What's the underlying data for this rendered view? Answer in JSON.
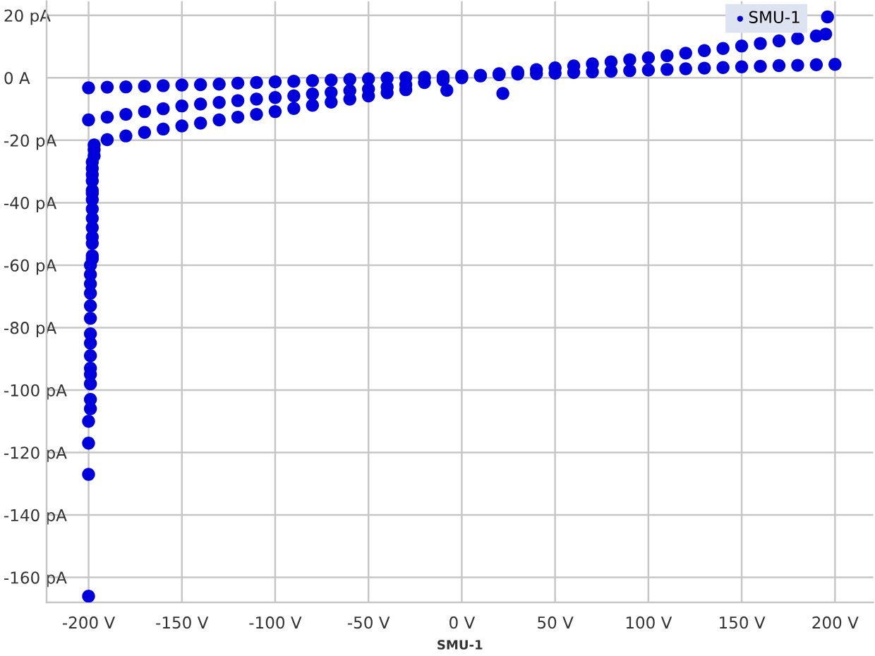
{
  "chart_data": {
    "type": "scatter",
    "xlabel": "SMU-1",
    "grid": true,
    "legend": "top right",
    "marker": "circle",
    "xlim": [
      -222.5,
      220.5
    ],
    "xticks": [
      {
        "value": -200,
        "label": "-200 V"
      },
      {
        "value": -150,
        "label": "-150 V"
      },
      {
        "value": -100,
        "label": "-100 V"
      },
      {
        "value": -50,
        "label": "-50 V"
      },
      {
        "value": 0,
        "label": "0 V"
      },
      {
        "value": 50,
        "label": "50 V"
      },
      {
        "value": 100,
        "label": "100 V"
      },
      {
        "value": 150,
        "label": "150 V"
      },
      {
        "value": 200,
        "label": "200 V"
      }
    ],
    "ylim": [
      -168,
      24.5
    ],
    "yticks": [
      {
        "value": 20,
        "label": "20 pA"
      },
      {
        "value": 0,
        "label": "0 A"
      },
      {
        "value": -20,
        "label": "-20 pA"
      },
      {
        "value": -40,
        "label": "-40 pA"
      },
      {
        "value": -60,
        "label": "-60 pA"
      },
      {
        "value": -80,
        "label": "-80 pA"
      },
      {
        "value": -100,
        "label": "-100 pA"
      },
      {
        "value": -120,
        "label": "-120 pA"
      },
      {
        "value": -140,
        "label": "-140 pA"
      },
      {
        "value": -160,
        "label": "-160 pA"
      }
    ],
    "series": [
      {
        "name": "SMU-1",
        "color": "#0000dd",
        "x": [
          -200,
          -190,
          -180,
          -170,
          -160,
          -150,
          -140,
          -130,
          -120,
          -110,
          -100,
          -90,
          -80,
          -70,
          -60,
          -50,
          -40,
          -30,
          -20,
          -10,
          0,
          10,
          20,
          30,
          40,
          50,
          60,
          70,
          80,
          90,
          100,
          110,
          120,
          130,
          140,
          150,
          160,
          170,
          180,
          190,
          200,
          -200,
          -190,
          -180,
          -170,
          -160,
          -150,
          -140,
          -130,
          -120,
          -110,
          -100,
          -90,
          -80,
          -70,
          -60,
          -50,
          -40,
          -30,
          -20,
          -10,
          0,
          10,
          20,
          30,
          40,
          50,
          60,
          70,
          80,
          90,
          100,
          110,
          120,
          130,
          140,
          150,
          160,
          170,
          180,
          190,
          195,
          -197,
          -190,
          -180,
          -170,
          -160,
          -150,
          -140,
          -130,
          -120,
          -110,
          -100,
          -90,
          -80,
          -70,
          -60,
          -50,
          -40,
          -30,
          -197,
          -197,
          -198,
          -198,
          -198,
          -198,
          -198,
          -198,
          -198,
          -198,
          -198,
          -198,
          -198,
          -198,
          -198,
          -198,
          -199,
          -199,
          -199,
          -199,
          -199,
          -199,
          -199,
          -199,
          -199,
          -199,
          -199,
          -199,
          -199,
          -199,
          -200,
          -200,
          -200,
          -200,
          196,
          -8,
          22
        ],
        "values": [
          -3.2,
          -3.0,
          -2.9,
          -2.7,
          -2.5,
          -2.3,
          -2.2,
          -2.0,
          -1.7,
          -1.5,
          -1.3,
          -1.1,
          -0.9,
          -0.7,
          -0.5,
          -0.3,
          -0.1,
          0.1,
          0.2,
          0.4,
          0.6,
          0.8,
          1.0,
          1.2,
          1.3,
          1.5,
          1.7,
          1.9,
          2.1,
          2.3,
          2.5,
          2.7,
          2.9,
          3.1,
          3.3,
          3.5,
          3.7,
          3.9,
          4.0,
          4.2,
          4.3,
          -13.5,
          -12.6,
          -11.7,
          -10.8,
          -9.9,
          -9.0,
          -8.4,
          -7.9,
          -7.3,
          -6.8,
          -6.3,
          -5.8,
          -5.2,
          -4.7,
          -4.1,
          -3.6,
          -2.9,
          -2.2,
          -1.5,
          -0.7,
          0,
          0.6,
          1.3,
          1.9,
          2.6,
          3.2,
          3.8,
          4.5,
          5.1,
          5.8,
          6.4,
          7.1,
          7.9,
          8.7,
          9.4,
          10.2,
          11.0,
          11.8,
          12.6,
          13.4,
          14.0,
          -21.5,
          -19.8,
          -18.6,
          -17.5,
          -16.4,
          -15.4,
          -14.5,
          -13.5,
          -12.6,
          -11.7,
          -10.8,
          -9.8,
          -8.8,
          -7.8,
          -6.8,
          -5.8,
          -4.8,
          -3.8,
          -23,
          -25,
          -27,
          -29,
          -31,
          -33,
          -36,
          -37,
          -39,
          -42,
          -45,
          -48,
          -51,
          -53,
          -57,
          -58,
          -60,
          -63,
          -66,
          -69,
          -73,
          -77,
          -82,
          -85,
          -89,
          -93,
          -95,
          -98,
          -103,
          -106,
          -110,
          -117,
          -127,
          -166,
          19.5,
          -4,
          -5
        ]
      }
    ]
  }
}
